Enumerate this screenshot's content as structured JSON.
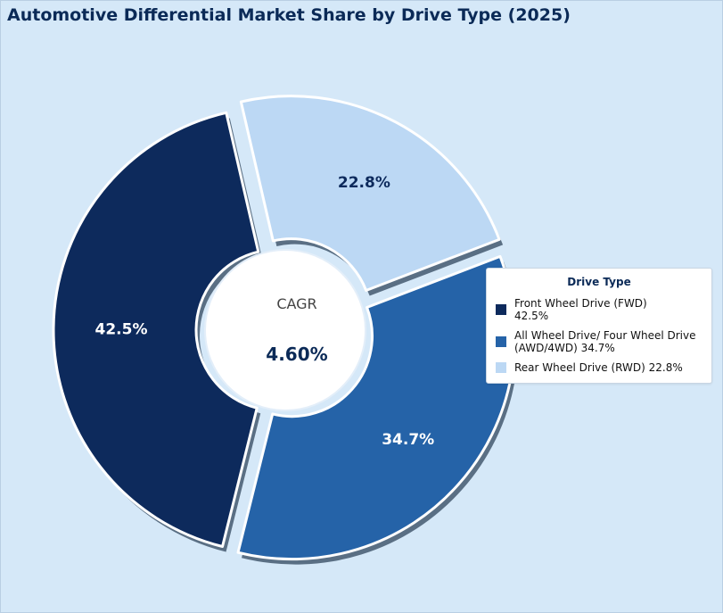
{
  "chart_data": {
    "type": "pie",
    "title": "Automotive Differential Market Share by Drive Type (2025)",
    "categories": [
      "Front Wheel Drive (FWD)",
      "All Wheel Drive/ Four Wheel Drive (AWD/4WD)",
      "Rear Wheel Drive (RWD)"
    ],
    "values": [
      42.5,
      34.7,
      22.8
    ],
    "labels": [
      "42.5%",
      "34.7%",
      "22.8%"
    ],
    "colors": [
      "#0d2a5c",
      "#2563a8",
      "#bcd8f4"
    ],
    "label_colors": [
      "#ffffff",
      "#ffffff",
      "#0d2a5c"
    ],
    "donut": true,
    "legend": {
      "title": "Drive Type",
      "placement": "right",
      "entries": [
        {
          "lines": [
            "Front Wheel Drive (FWD)",
            "42.5%"
          ]
        },
        {
          "lines": [
            "All Wheel Drive/ Four Wheel Drive",
            "(AWD/4WD) 34.7%"
          ]
        },
        {
          "lines": [
            "Rear Wheel Drive (RWD) 22.8%"
          ]
        }
      ]
    },
    "center": {
      "label": "CAGR",
      "value": "4.60%"
    }
  }
}
